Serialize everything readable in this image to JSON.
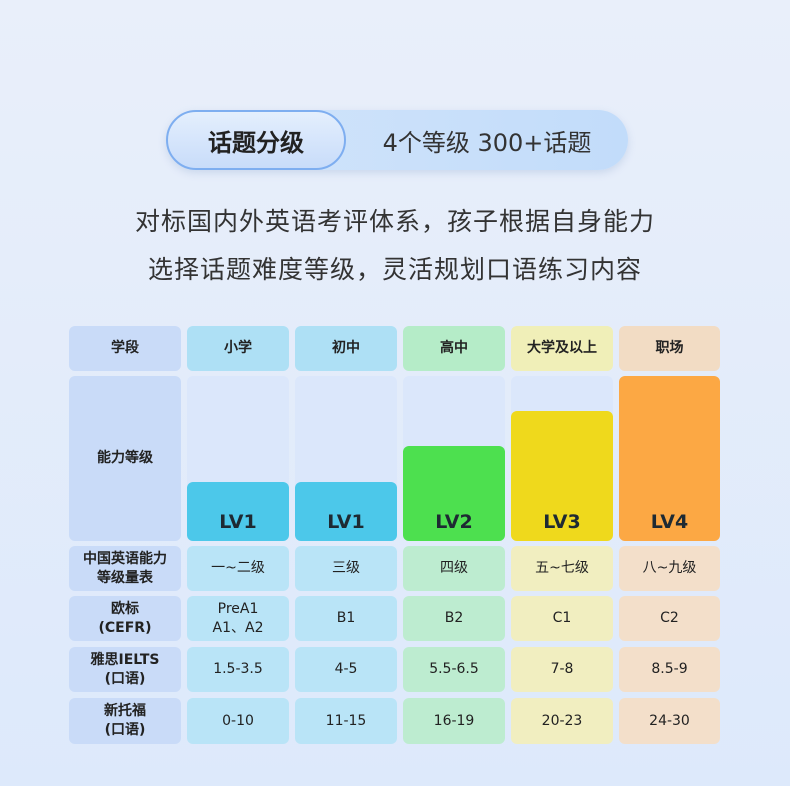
{
  "header": {
    "badge": "话题分级",
    "subtitle": "4个等级 300+话题"
  },
  "description": [
    "对标国内外英语考评体系，孩子根据自身能力",
    "选择话题难度等级，灵活规划口语练习内容"
  ],
  "table": {
    "row_labels": [
      "学段",
      "能力等级",
      "中国英语能力\n等级量表",
      "欧标\n(CEFR)",
      "雅思IELTS\n(口语)",
      "新托福\n(口语)"
    ],
    "columns": [
      {
        "stage": "小学",
        "level": "LV1",
        "level_value": 1,
        "cse": "一~二级",
        "cefr": "PreA1\nA1、A2",
        "ielts": "1.5-3.5",
        "toefl": "0-10",
        "bar_color": "#4cc8ea",
        "head_color": "#aee0f5",
        "cell_color": "#b9e4f7"
      },
      {
        "stage": "初中",
        "level": "LV1",
        "level_value": 1,
        "cse": "三级",
        "cefr": "B1",
        "ielts": "4-5",
        "toefl": "11-15",
        "bar_color": "#4cc8ea",
        "head_color": "#aee0f5",
        "cell_color": "#b9e4f7"
      },
      {
        "stage": "高中",
        "level": "LV2",
        "level_value": 2,
        "cse": "四级",
        "cefr": "B2",
        "ielts": "5.5-6.5",
        "toefl": "16-19",
        "bar_color": "#4de04f",
        "head_color": "#b5ecc8",
        "cell_color": "#bdecd0"
      },
      {
        "stage": "大学及以上",
        "level": "LV3",
        "level_value": 3,
        "cse": "五~七级",
        "cefr": "C1",
        "ielts": "7-8",
        "toefl": "20-23",
        "bar_color": "#efd91c",
        "head_color": "#f0efb8",
        "cell_color": "#f1eec0"
      },
      {
        "stage": "职场",
        "level": "LV4",
        "level_value": 4,
        "cse": "八~九级",
        "cefr": "C2",
        "ielts": "8.5-9",
        "toefl": "24-30",
        "bar_color": "#fca844",
        "head_color": "#f2dcc4",
        "cell_color": "#f3dfca"
      }
    ]
  }
}
